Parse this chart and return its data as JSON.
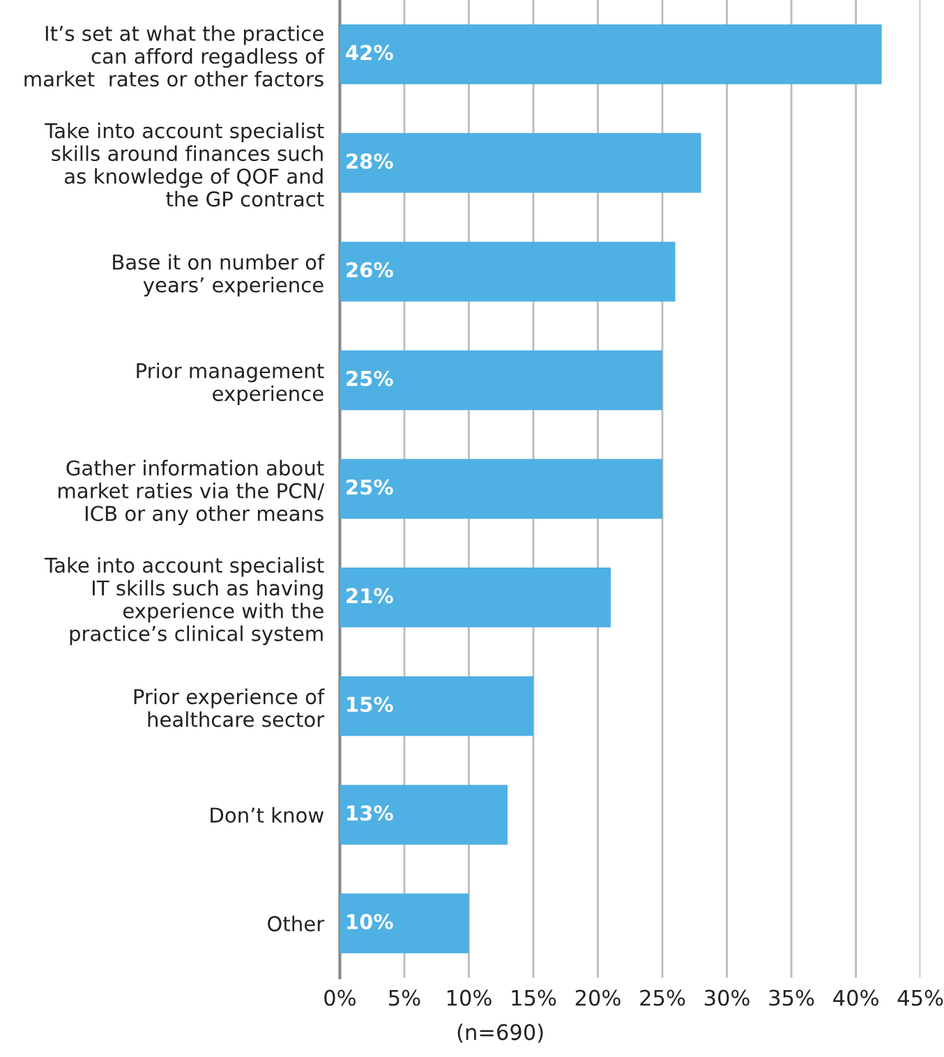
{
  "chart_data": {
    "type": "bar",
    "orientation": "horizontal",
    "categories": [
      "It’s set at what the practice\ncan afford regadless of\nmarket  rates or other factors",
      "Take into account specialist\nskills around finances such\nas knowledge of QOF and\nthe GP contract",
      "Base it on number of\nyears’ experience",
      "Prior management\nexperience",
      "Gather information about\nmarket raties via the PCN/\nICB or any other means",
      "Take into account specialist\nIT skills such as having\nexperience with the\npractice’s clinical system",
      "Prior experience of\nhealthcare sector",
      "Don’t know",
      "Other"
    ],
    "values": [
      42,
      28,
      26,
      25,
      25,
      21,
      15,
      13,
      10
    ],
    "color": "#4fb0e3",
    "xlim": [
      0,
      45
    ],
    "xticks": [
      {
        "value": 0,
        "label": "0%"
      },
      {
        "value": 5,
        "label": "5%"
      },
      {
        "value": 10,
        "label": "10%"
      },
      {
        "value": 15,
        "label": "15%"
      },
      {
        "value": 20,
        "label": "20%"
      },
      {
        "value": 25,
        "label": "25%"
      },
      {
        "value": 30,
        "label": "30%"
      },
      {
        "value": 35,
        "label": "35%"
      },
      {
        "value": 40,
        "label": "40%"
      },
      {
        "value": 45,
        "label": "45%"
      }
    ],
    "grid": "x",
    "value_labels": [
      "42%",
      "28%",
      "26%",
      "25%",
      "25%",
      "21%",
      "15%",
      "13%",
      "10%"
    ],
    "annotations": [
      "(n=690)"
    ]
  }
}
